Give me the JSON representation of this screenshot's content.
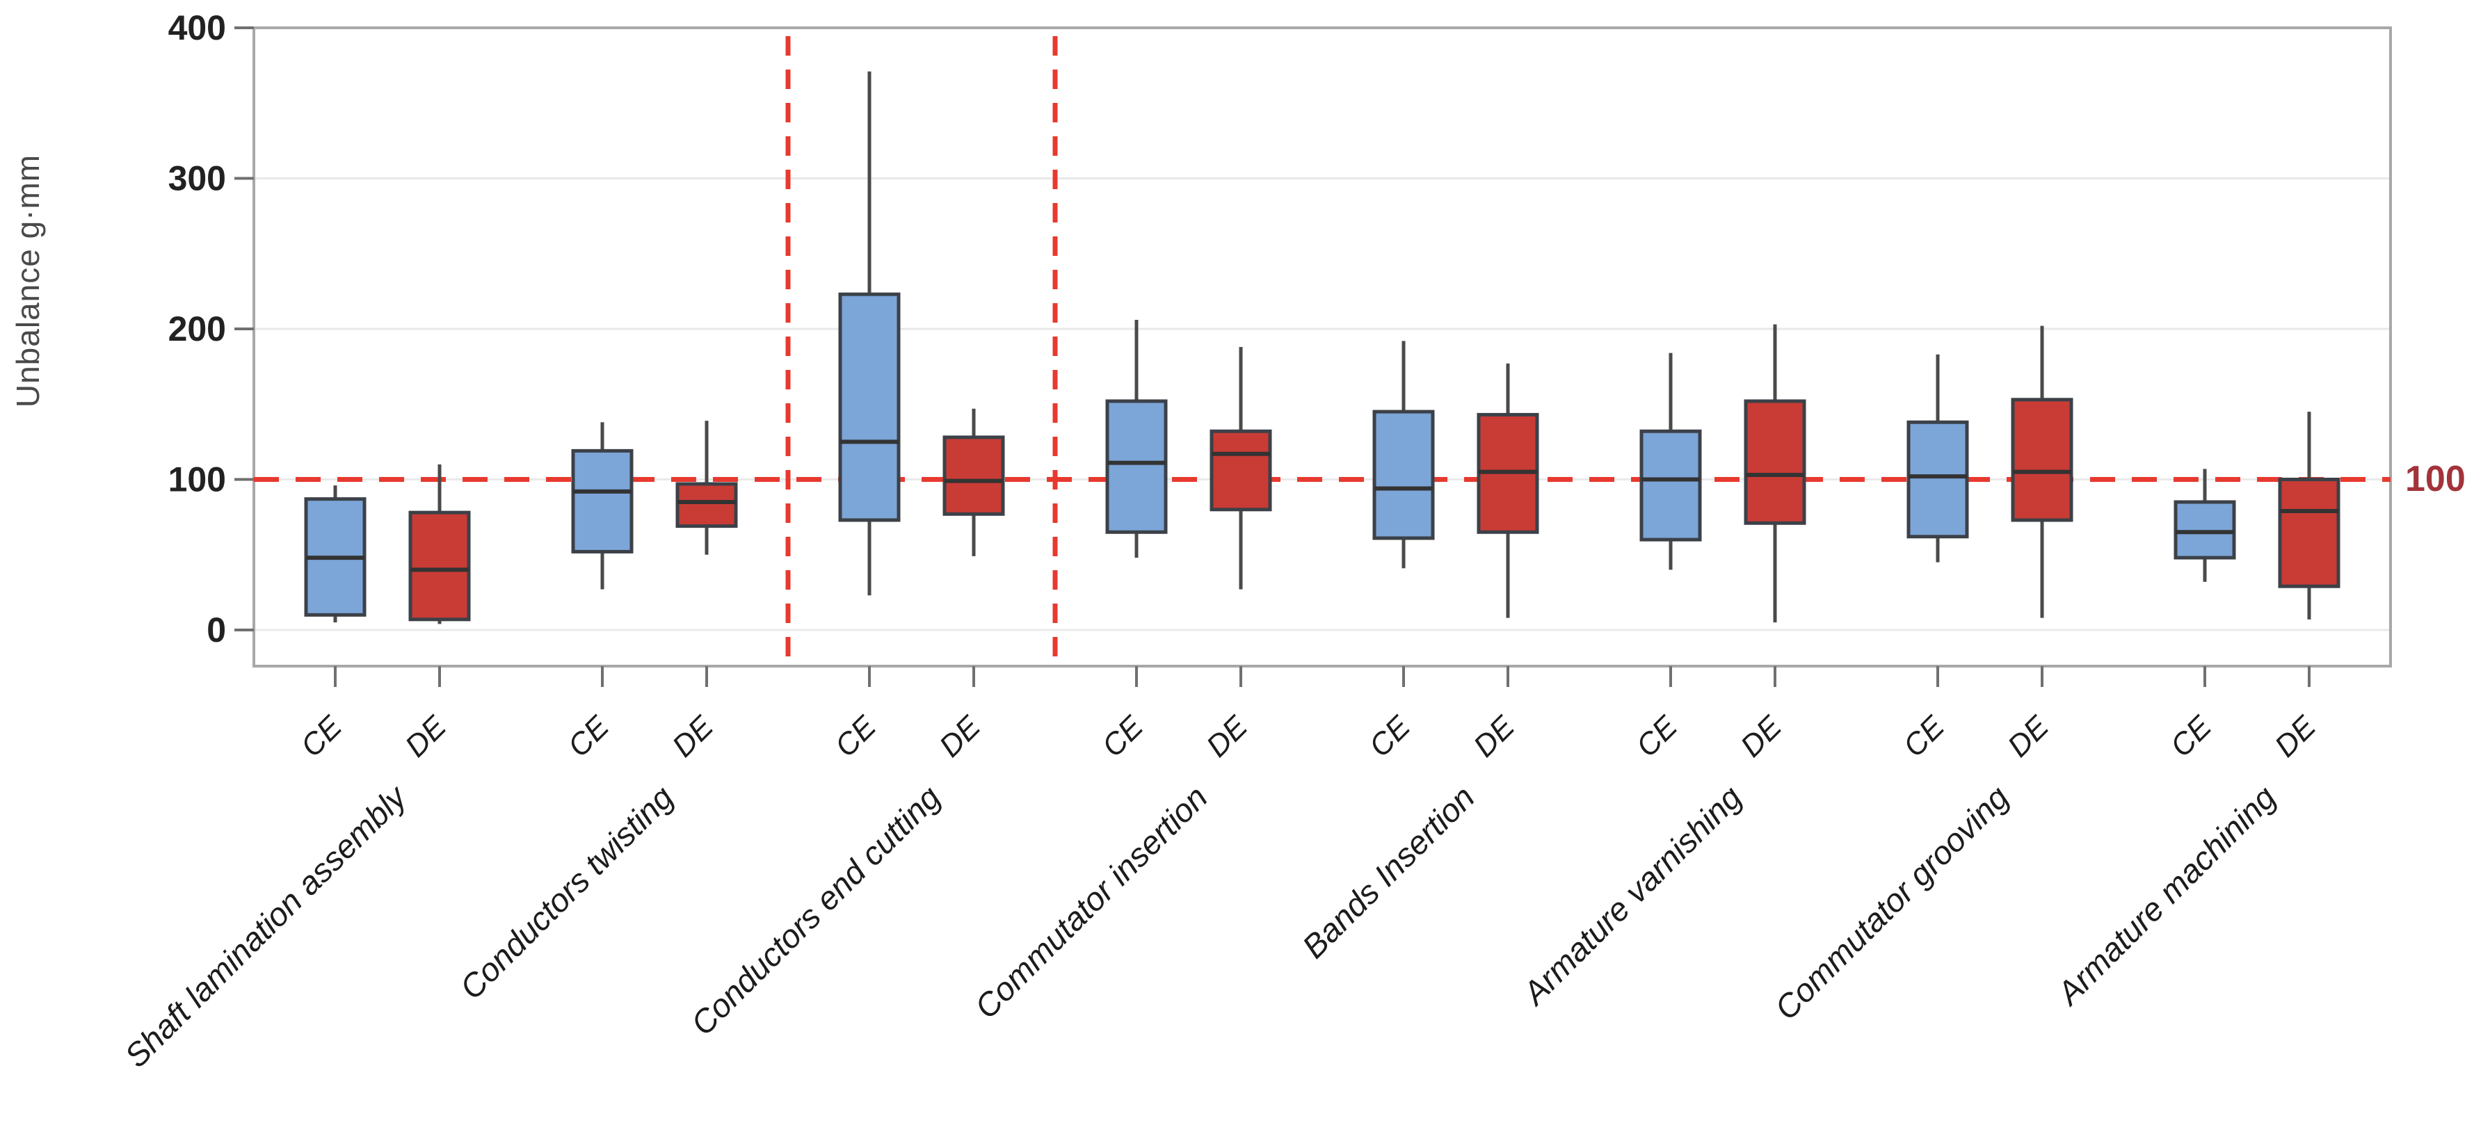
{
  "chart_data": {
    "type": "boxplot",
    "title": "",
    "ylabel": "Unbalance g·mm",
    "xlabel": "",
    "ylim": [
      0,
      400
    ],
    "yticks": [
      0,
      100,
      200,
      300,
      400
    ],
    "grid": "horizontal",
    "legend_position": "none",
    "series_labels": [
      "CE",
      "DE"
    ],
    "ref_line": {
      "value": 100,
      "label": "100"
    },
    "highlighted_group": "Conductors end cutting",
    "vlines_at_group_boundaries": [
      2,
      3
    ],
    "groups": [
      {
        "name": "Shaft lamination assembly",
        "CE": {
          "whisker_low": 5,
          "q1": 10,
          "median": 48,
          "q3": 87,
          "whisker_high": 96
        },
        "DE": {
          "whisker_low": 4,
          "q1": 7,
          "median": 40,
          "q3": 78,
          "whisker_high": 110
        }
      },
      {
        "name": "Conductors twisting",
        "CE": {
          "whisker_low": 27,
          "q1": 52,
          "median": 92,
          "q3": 119,
          "whisker_high": 138
        },
        "DE": {
          "whisker_low": 50,
          "q1": 69,
          "median": 85,
          "q3": 97,
          "whisker_high": 139
        }
      },
      {
        "name": "Conductors end cutting",
        "CE": {
          "whisker_low": 23,
          "q1": 73,
          "median": 125,
          "q3": 223,
          "whisker_high": 371
        },
        "DE": {
          "whisker_low": 49,
          "q1": 77,
          "median": 99,
          "q3": 128,
          "whisker_high": 147
        }
      },
      {
        "name": "Commutator insertion",
        "CE": {
          "whisker_low": 48,
          "q1": 65,
          "median": 111,
          "q3": 152,
          "whisker_high": 206
        },
        "DE": {
          "whisker_low": 27,
          "q1": 80,
          "median": 117,
          "q3": 132,
          "whisker_high": 188
        }
      },
      {
        "name": "Bands Insertion",
        "CE": {
          "whisker_low": 41,
          "q1": 61,
          "median": 94,
          "q3": 145,
          "whisker_high": 192
        },
        "DE": {
          "whisker_low": 8,
          "q1": 65,
          "median": 105,
          "q3": 143,
          "whisker_high": 177
        }
      },
      {
        "name": "Armature varnishing",
        "CE": {
          "whisker_low": 40,
          "q1": 60,
          "median": 100,
          "q3": 132,
          "whisker_high": 184
        },
        "DE": {
          "whisker_low": 5,
          "q1": 71,
          "median": 103,
          "q3": 152,
          "whisker_high": 203
        }
      },
      {
        "name": "Commutator grooving",
        "CE": {
          "whisker_low": 45,
          "q1": 62,
          "median": 102,
          "q3": 138,
          "whisker_high": 183
        },
        "DE": {
          "whisker_low": 8,
          "q1": 73,
          "median": 105,
          "q3": 153,
          "whisker_high": 202
        }
      },
      {
        "name": "Armature machining",
        "CE": {
          "whisker_low": 32,
          "q1": 48,
          "median": 65,
          "q3": 85,
          "whisker_high": 107
        },
        "DE": {
          "whisker_low": 7,
          "q1": 29,
          "median": 79,
          "q3": 100,
          "whisker_high": 145
        }
      }
    ],
    "colors": {
      "ce_fill": "#7CA5D8",
      "de_fill": "#C93B35",
      "box_stroke": "#3C4148",
      "whisker": "#4A4A4A",
      "median": "#333333",
      "ref_line": "#E8392F",
      "ref_label": "#A3333A",
      "grid": "#E9E9E9",
      "axis_border": "#A8A8A8",
      "tick_mark": "#707070",
      "tick_text": "#222222",
      "axis_title": "#4A4A4A",
      "xlabel_text": "#1C1C1C"
    }
  }
}
